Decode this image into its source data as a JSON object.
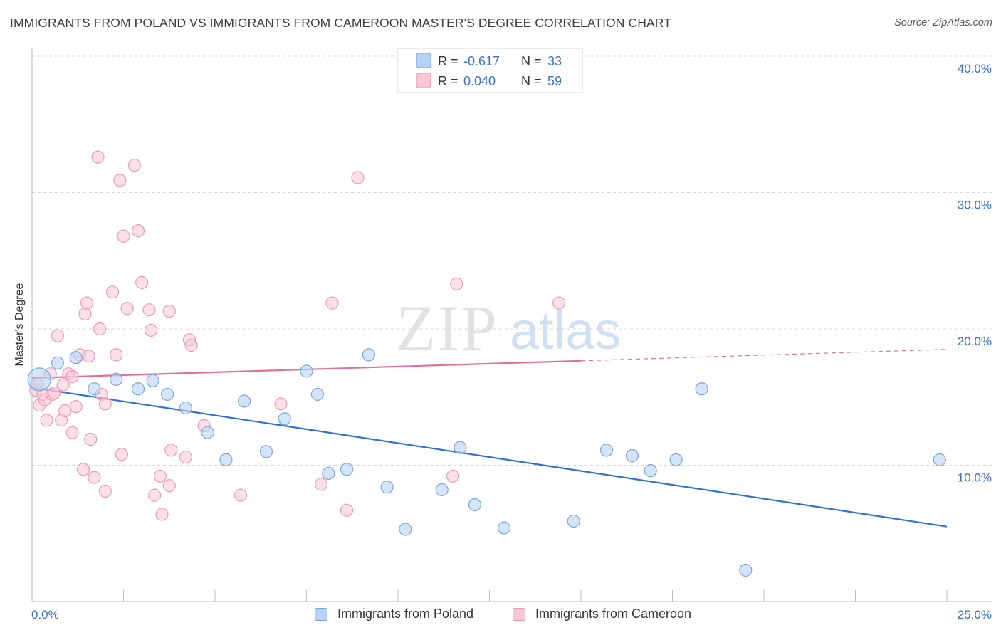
{
  "title": "IMMIGRANTS FROM POLAND VS IMMIGRANTS FROM CAMEROON MASTER'S DEGREE CORRELATION CHART",
  "source": "Source: ZipAtlas.com",
  "watermark": {
    "zip": "ZIP",
    "atlas": "atlas"
  },
  "colors": {
    "poland_fill": "#b8d2f5",
    "poland_stroke": "#7aa6e0",
    "poland_line": "#2f72d6",
    "cameroon_fill": "#f9c6d6",
    "cameroon_stroke": "#ec9ab4",
    "cameroon_line": "#e36f97",
    "tick_label": "#3a70c8",
    "grid": "#d8d8d8"
  },
  "legend": {
    "rows": [
      {
        "r_label": "R = ",
        "r_value": "-0.617",
        "n_label": "N = ",
        "n_value": "33"
      },
      {
        "r_label": "R = ",
        "r_value": "0.040",
        "n_label": "N = ",
        "n_value": "59"
      }
    ]
  },
  "bottom_legend": {
    "poland": "Immigrants from Poland",
    "cameroon": "Immigrants from Cameroon"
  },
  "chart_data": {
    "type": "scatter",
    "title": "IMMIGRANTS FROM POLAND VS IMMIGRANTS FROM CAMEROON MASTER'S DEGREE CORRELATION CHART",
    "xlabel": "",
    "ylabel": "Master's Degree",
    "xlim": [
      0,
      25
    ],
    "ylim": [
      0,
      40
    ],
    "x_tick_labels": [
      "0.0%",
      "25.0%"
    ],
    "y_ticks": [
      10,
      20,
      30,
      40
    ],
    "y_tick_labels": [
      "10.0%",
      "20.0%",
      "30.0%",
      "40.0%"
    ],
    "grid": true,
    "legend_position": "top-center",
    "series": [
      {
        "name": "Immigrants from Poland",
        "r": -0.617,
        "n": 33,
        "trend": {
          "x": [
            0,
            25
          ],
          "y": [
            15.7,
            5.5
          ],
          "dashed_from_x": null
        },
        "points": [
          {
            "x": 0.2,
            "y": 16.3,
            "big": true
          },
          {
            "x": 0.7,
            "y": 17.5
          },
          {
            "x": 1.2,
            "y": 17.9
          },
          {
            "x": 1.7,
            "y": 15.6
          },
          {
            "x": 2.3,
            "y": 16.3
          },
          {
            "x": 2.9,
            "y": 15.6
          },
          {
            "x": 3.3,
            "y": 16.2
          },
          {
            "x": 3.7,
            "y": 15.2
          },
          {
            "x": 4.2,
            "y": 14.2
          },
          {
            "x": 4.8,
            "y": 12.4
          },
          {
            "x": 5.3,
            "y": 10.4
          },
          {
            "x": 5.8,
            "y": 14.7
          },
          {
            "x": 6.4,
            "y": 11.0
          },
          {
            "x": 6.9,
            "y": 13.4
          },
          {
            "x": 7.5,
            "y": 16.9
          },
          {
            "x": 7.8,
            "y": 15.2
          },
          {
            "x": 8.1,
            "y": 9.4
          },
          {
            "x": 8.6,
            "y": 9.7
          },
          {
            "x": 9.2,
            "y": 18.1
          },
          {
            "x": 9.7,
            "y": 8.4
          },
          {
            "x": 10.2,
            "y": 5.3
          },
          {
            "x": 11.2,
            "y": 8.2
          },
          {
            "x": 11.7,
            "y": 11.3
          },
          {
            "x": 12.1,
            "y": 7.1
          },
          {
            "x": 12.9,
            "y": 5.4
          },
          {
            "x": 14.8,
            "y": 5.9
          },
          {
            "x": 15.7,
            "y": 11.1
          },
          {
            "x": 16.4,
            "y": 10.7
          },
          {
            "x": 16.9,
            "y": 9.6
          },
          {
            "x": 17.6,
            "y": 10.4
          },
          {
            "x": 18.3,
            "y": 15.6
          },
          {
            "x": 19.5,
            "y": 2.3
          },
          {
            "x": 24.8,
            "y": 10.4
          }
        ]
      },
      {
        "name": "Immigrants from Cameroon",
        "r": 0.04,
        "n": 59,
        "trend": {
          "x": [
            0,
            25
          ],
          "y": [
            16.4,
            18.5
          ],
          "dashed_from_x": 15
        },
        "points": [
          {
            "x": 0.1,
            "y": 15.5
          },
          {
            "x": 0.15,
            "y": 15.9
          },
          {
            "x": 0.2,
            "y": 14.4
          },
          {
            "x": 0.3,
            "y": 15.2
          },
          {
            "x": 0.35,
            "y": 14.8
          },
          {
            "x": 0.4,
            "y": 13.3
          },
          {
            "x": 0.5,
            "y": 16.7
          },
          {
            "x": 0.55,
            "y": 15.2
          },
          {
            "x": 0.6,
            "y": 15.3
          },
          {
            "x": 0.7,
            "y": 19.5
          },
          {
            "x": 0.8,
            "y": 13.3
          },
          {
            "x": 0.85,
            "y": 15.9
          },
          {
            "x": 0.9,
            "y": 14.0
          },
          {
            "x": 1.0,
            "y": 16.7
          },
          {
            "x": 1.1,
            "y": 16.5
          },
          {
            "x": 1.1,
            "y": 12.4
          },
          {
            "x": 1.2,
            "y": 14.3
          },
          {
            "x": 1.3,
            "y": 18.1
          },
          {
            "x": 1.4,
            "y": 9.7
          },
          {
            "x": 1.45,
            "y": 21.1
          },
          {
            "x": 1.5,
            "y": 21.9
          },
          {
            "x": 1.55,
            "y": 18.0
          },
          {
            "x": 1.6,
            "y": 11.9
          },
          {
            "x": 1.7,
            "y": 9.1
          },
          {
            "x": 1.8,
            "y": 32.6
          },
          {
            "x": 1.85,
            "y": 20.0
          },
          {
            "x": 1.9,
            "y": 15.2
          },
          {
            "x": 2.0,
            "y": 14.5
          },
          {
            "x": 2.0,
            "y": 8.1
          },
          {
            "x": 2.2,
            "y": 22.7
          },
          {
            "x": 2.3,
            "y": 18.1
          },
          {
            "x": 2.4,
            "y": 30.9
          },
          {
            "x": 2.45,
            "y": 10.8
          },
          {
            "x": 2.5,
            "y": 26.8
          },
          {
            "x": 2.6,
            "y": 21.5
          },
          {
            "x": 2.8,
            "y": 32.0
          },
          {
            "x": 2.9,
            "y": 27.2
          },
          {
            "x": 3.0,
            "y": 23.4
          },
          {
            "x": 3.2,
            "y": 21.4
          },
          {
            "x": 3.25,
            "y": 19.9
          },
          {
            "x": 3.35,
            "y": 7.8
          },
          {
            "x": 3.5,
            "y": 9.2
          },
          {
            "x": 3.55,
            "y": 6.4
          },
          {
            "x": 3.75,
            "y": 8.5
          },
          {
            "x": 3.75,
            "y": 21.3
          },
          {
            "x": 3.8,
            "y": 11.1
          },
          {
            "x": 4.2,
            "y": 10.6
          },
          {
            "x": 4.3,
            "y": 19.2
          },
          {
            "x": 4.35,
            "y": 18.8
          },
          {
            "x": 4.7,
            "y": 12.9
          },
          {
            "x": 5.7,
            "y": 7.8
          },
          {
            "x": 6.8,
            "y": 14.5
          },
          {
            "x": 7.9,
            "y": 8.6
          },
          {
            "x": 8.2,
            "y": 21.9
          },
          {
            "x": 8.6,
            "y": 6.7
          },
          {
            "x": 8.9,
            "y": 31.1
          },
          {
            "x": 11.5,
            "y": 9.2
          },
          {
            "x": 11.6,
            "y": 23.3
          },
          {
            "x": 14.4,
            "y": 21.9
          }
        ]
      }
    ]
  }
}
